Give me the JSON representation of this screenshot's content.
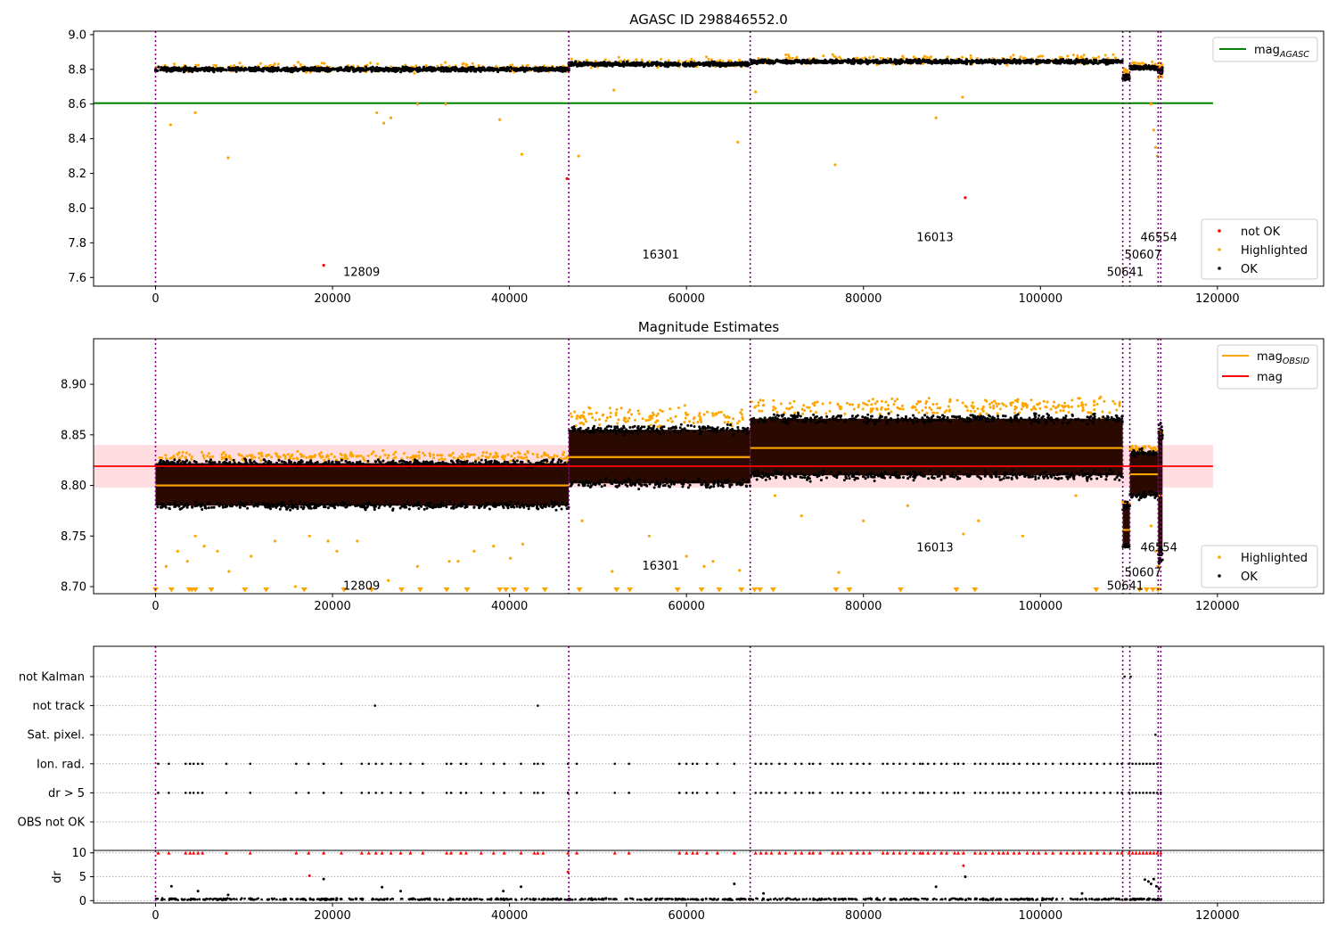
{
  "colors": {
    "ok": "#000000",
    "highlighted": "#ffa500",
    "not_ok": "#ff0000",
    "mag_agasc_line": "#008000",
    "mag_line": "#ff0000",
    "mag_band": "#ffdde1",
    "mag_obsid_line": "#ffa500",
    "obsid_divider": "#800080",
    "dark_band": "#2a0a00"
  },
  "chart_data": [
    {
      "id": "top",
      "type": "scatter",
      "title": "AGASC ID 298846552.0",
      "xlim": [
        -7000,
        132000
      ],
      "ylim": [
        7.55,
        9.02
      ],
      "xticks": [
        0,
        20000,
        40000,
        60000,
        80000,
        100000,
        120000
      ],
      "xtick_labels": [
        "0",
        "20000",
        "40000",
        "60000",
        "80000",
        "100000",
        "120000"
      ],
      "yticks": [
        7.6,
        7.8,
        8.0,
        8.2,
        8.4,
        8.6,
        8.8,
        9.0
      ],
      "ytick_labels": [
        "7.6",
        "7.8",
        "8.0",
        "8.2",
        "8.4",
        "8.6",
        "8.8",
        "9.0"
      ],
      "mag_agasc": 8.605,
      "mag_agasc_xrange": [
        -7000,
        119500
      ],
      "ok_segments": [
        {
          "x": [
            0,
            46700
          ],
          "y": 8.8,
          "spread": 0.03
        },
        {
          "x": [
            46700,
            67200
          ],
          "y": 8.83,
          "spread": 0.03
        },
        {
          "x": [
            67200,
            109300
          ],
          "y": 8.845,
          "spread": 0.03
        },
        {
          "x": [
            109300,
            110100
          ],
          "y": 8.755,
          "spread": 0.04
        },
        {
          "x": [
            110100,
            113300
          ],
          "y": 8.81,
          "spread": 0.03
        },
        {
          "x": [
            113300,
            113800
          ],
          "y": 8.79,
          "spread": 0.05
        }
      ],
      "highlighted_points": [
        [
          1700,
          8.48
        ],
        [
          4500,
          8.55
        ],
        [
          8200,
          8.29
        ],
        [
          25000,
          8.55
        ],
        [
          25800,
          8.49
        ],
        [
          26600,
          8.52
        ],
        [
          29600,
          8.6
        ],
        [
          32800,
          8.6
        ],
        [
          38900,
          8.51
        ],
        [
          41400,
          8.31
        ],
        [
          47800,
          8.3
        ],
        [
          51800,
          8.68
        ],
        [
          65800,
          8.38
        ],
        [
          67800,
          8.67
        ],
        [
          76800,
          8.25
        ],
        [
          88200,
          8.52
        ],
        [
          91200,
          8.64
        ],
        [
          112500,
          8.6
        ],
        [
          112800,
          8.45
        ],
        [
          113000,
          8.35
        ],
        [
          113200,
          8.3
        ]
      ],
      "not_ok_points": [
        [
          46500,
          8.17
        ],
        [
          91500,
          8.06
        ],
        [
          19000,
          7.67
        ]
      ],
      "obsid_labels": [
        {
          "text": "12809",
          "x": 21200,
          "y": 7.61
        },
        {
          "text": "16301",
          "x": 55000,
          "y": 7.71
        },
        {
          "text": "16013",
          "x": 86000,
          "y": 7.81
        },
        {
          "text": "50641",
          "x": 107500,
          "y": 7.61
        },
        {
          "text": "50607",
          "x": 109500,
          "y": 7.71
        },
        {
          "text": "46554",
          "x": 111300,
          "y": 7.81
        }
      ],
      "legend_upper": {
        "position": "upper right",
        "entries": [
          {
            "label": "mag",
            "sub": "AGASC",
            "kind": "line",
            "color": "#008000"
          }
        ]
      },
      "legend_lower": {
        "position": "lower right",
        "entries": [
          {
            "label": "not OK",
            "kind": "dot",
            "color": "#ff0000"
          },
          {
            "label": "Highlighted",
            "kind": "dot",
            "color": "#ffa500"
          },
          {
            "label": "OK",
            "kind": "dot",
            "color": "#000000"
          }
        ]
      }
    },
    {
      "id": "mid",
      "type": "scatter",
      "title": "Magnitude Estimates",
      "xlim": [
        -7000,
        132000
      ],
      "ylim": [
        8.693,
        8.945
      ],
      "xticks": [
        0,
        20000,
        40000,
        60000,
        80000,
        100000,
        120000
      ],
      "xtick_labels": [
        "0",
        "20000",
        "40000",
        "60000",
        "80000",
        "100000",
        "120000"
      ],
      "yticks": [
        8.7,
        8.75,
        8.8,
        8.85,
        8.9
      ],
      "ytick_labels": [
        "8.70",
        "8.75",
        "8.80",
        "8.85",
        "8.90"
      ],
      "mag": 8.819,
      "mag_band": [
        8.798,
        8.84
      ],
      "mag_xrange": [
        -7000,
        119500
      ],
      "segments": [
        {
          "x": [
            0,
            46700
          ],
          "mag_obsid": 8.8,
          "ok_range": [
            8.78,
            8.822
          ],
          "hi_range": [
            8.822,
            8.835
          ]
        },
        {
          "x": [
            46700,
            67200
          ],
          "mag_obsid": 8.828,
          "ok_range": [
            8.802,
            8.855
          ],
          "hi_range": [
            8.855,
            8.882
          ]
        },
        {
          "x": [
            67200,
            109300
          ],
          "mag_obsid": 8.837,
          "ok_range": [
            8.81,
            8.866
          ],
          "hi_range": [
            8.866,
            8.89
          ]
        },
        {
          "x": [
            109300,
            110100
          ],
          "mag_obsid": 8.756,
          "ok_range": [
            8.74,
            8.78
          ],
          "hi_range": [
            8.78,
            8.785
          ]
        },
        {
          "x": [
            110100,
            113300
          ],
          "mag_obsid": 8.811,
          "ok_range": [
            8.79,
            8.832
          ],
          "hi_range": [
            8.832,
            8.84
          ]
        },
        {
          "x": [
            113300,
            113800
          ],
          "mag_obsid": 8.79,
          "ok_range": [
            8.73,
            8.85
          ],
          "hi_range": [
            8.85,
            8.855
          ]
        }
      ],
      "highlighted_points": [
        [
          1200,
          8.72
        ],
        [
          2500,
          8.735
        ],
        [
          3600,
          8.725
        ],
        [
          4500,
          8.75
        ],
        [
          5500,
          8.74
        ],
        [
          7000,
          8.735
        ],
        [
          8300,
          8.715
        ],
        [
          10800,
          8.73
        ],
        [
          13500,
          8.745
        ],
        [
          15800,
          8.7
        ],
        [
          17400,
          8.75
        ],
        [
          19500,
          8.745
        ],
        [
          20500,
          8.735
        ],
        [
          22800,
          8.745
        ],
        [
          26300,
          8.706
        ],
        [
          29600,
          8.72
        ],
        [
          33200,
          8.725
        ],
        [
          34200,
          8.725
        ],
        [
          36000,
          8.735
        ],
        [
          38200,
          8.74
        ],
        [
          40100,
          8.728
        ],
        [
          41500,
          8.742
        ],
        [
          48200,
          8.765
        ],
        [
          51600,
          8.715
        ],
        [
          55800,
          8.75
        ],
        [
          60000,
          8.73
        ],
        [
          62000,
          8.72
        ],
        [
          63000,
          8.725
        ],
        [
          66000,
          8.716
        ],
        [
          70000,
          8.79
        ],
        [
          73000,
          8.77
        ],
        [
          77200,
          8.714
        ],
        [
          80000,
          8.765
        ],
        [
          85000,
          8.78
        ],
        [
          91300,
          8.752
        ],
        [
          93000,
          8.765
        ],
        [
          98000,
          8.75
        ],
        [
          104000,
          8.79
        ],
        [
          112500,
          8.76
        ],
        [
          113000,
          8.735
        ],
        [
          113300,
          8.72
        ]
      ],
      "lower_limit_markers": [
        0,
        1800,
        3800,
        4100,
        4500,
        6300,
        10100,
        12500,
        16800,
        21300,
        24400,
        27800,
        29900,
        32900,
        35200,
        38900,
        39600,
        40500,
        41900,
        44000,
        47900,
        52100,
        53600,
        59000,
        61700,
        63700,
        66200,
        67700,
        68300,
        69800,
        76900,
        78400,
        84200,
        90500,
        92600,
        106300,
        111200,
        112000,
        112700,
        113300
      ],
      "obsid_labels": [
        {
          "text": "12809",
          "x": 21200,
          "y": 8.697
        },
        {
          "text": "16301",
          "x": 55000,
          "y": 8.717
        },
        {
          "text": "16013",
          "x": 86000,
          "y": 8.735
        },
        {
          "text": "50641",
          "x": 107500,
          "y": 8.697
        },
        {
          "text": "50607",
          "x": 109500,
          "y": 8.71
        },
        {
          "text": "46554",
          "x": 111300,
          "y": 8.735
        }
      ],
      "legend_upper": {
        "position": "upper right",
        "entries": [
          {
            "label": "mag",
            "sub": "OBSID",
            "kind": "line",
            "color": "#ffa500"
          },
          {
            "label": "mag",
            "kind": "line",
            "color": "#ff0000"
          }
        ]
      },
      "legend_lower": {
        "position": "lower right",
        "entries": [
          {
            "label": "Highlighted",
            "kind": "dot",
            "color": "#ffa500"
          },
          {
            "label": "OK",
            "kind": "dot",
            "color": "#000000"
          }
        ]
      }
    },
    {
      "id": "flags",
      "type": "scatter",
      "xlim": [
        -7000,
        132000
      ],
      "categories": [
        "not Kalman",
        "not track",
        "Sat. pixel.",
        "Ion. rad.",
        "dr > 5",
        "OBS not OK"
      ],
      "flag_points": {
        "not Kalman": [
          109500,
          110200
        ],
        "not track": [
          24800,
          43200
        ],
        "Sat. pixel.": [
          113000
        ],
        "Ion. rad.": [
          300,
          1500,
          3400,
          3900,
          4300,
          4800,
          5300,
          8000,
          10700,
          15900,
          17300,
          19000,
          21000,
          23300,
          24100,
          24900,
          25600,
          26600,
          27700,
          28800,
          30200,
          32900,
          33400,
          34500,
          35100,
          36800,
          38200,
          39400,
          41300,
          42800,
          43200,
          43800,
          46600,
          47600,
          51900,
          53500,
          59200,
          60000,
          60700,
          61200,
          62300,
          63500,
          65400,
          67800,
          68400,
          69000,
          69600,
          70500,
          71200,
          72300,
          73000,
          73900,
          74300,
          75100,
          76500,
          77100,
          77600,
          78600,
          79300,
          80000,
          80700,
          82200,
          82700,
          83400,
          84100,
          84800,
          85700,
          86400,
          86700,
          87300,
          88000,
          88800,
          89400,
          90300,
          90700,
          91300,
          92600,
          93200,
          93800,
          94600,
          95300,
          95800,
          96300,
          97000,
          97600,
          98500,
          99200,
          99800,
          100600,
          101400,
          102300,
          103000,
          103700,
          104400,
          105000,
          105700,
          106400,
          107200,
          107900,
          108700,
          109200,
          110000,
          110400,
          110800,
          111200,
          111600,
          112000,
          112400,
          112800,
          113200,
          113600
        ],
        "dr > 5": [
          300,
          1500,
          3400,
          3900,
          4300,
          4800,
          5300,
          8000,
          10700,
          15900,
          17300,
          19000,
          21000,
          23300,
          24100,
          24900,
          25600,
          26600,
          27700,
          28800,
          30200,
          32900,
          33400,
          34500,
          35100,
          36800,
          38200,
          39400,
          41300,
          42800,
          43200,
          43800,
          46600,
          47600,
          51900,
          53500,
          59200,
          60000,
          60700,
          61200,
          62300,
          63500,
          65400,
          67800,
          68400,
          69000,
          69600,
          70500,
          71200,
          72300,
          73000,
          73900,
          74300,
          75100,
          76500,
          77100,
          77600,
          78600,
          79300,
          80000,
          80700,
          82200,
          82700,
          83400,
          84100,
          84800,
          85700,
          86400,
          86700,
          87300,
          88000,
          88800,
          89400,
          90300,
          90700,
          91300,
          92600,
          93200,
          93800,
          94600,
          95300,
          95800,
          96300,
          97000,
          97600,
          98500,
          99200,
          99800,
          100600,
          101400,
          102300,
          103000,
          103700,
          104400,
          105000,
          105700,
          106400,
          107200,
          107900,
          108700,
          109200,
          110000,
          110400,
          110800,
          111200,
          111600,
          112000,
          112400,
          112800,
          113200,
          113600
        ],
        "OBS not OK": []
      }
    },
    {
      "id": "dr",
      "type": "scatter",
      "ylabel": "dr",
      "xlim": [
        -7000,
        132000
      ],
      "ylim": [
        -0.5,
        10.5
      ],
      "xticks": [
        0,
        20000,
        40000,
        60000,
        80000,
        100000,
        120000
      ],
      "xtick_labels": [
        "0",
        "20000",
        "40000",
        "60000",
        "80000",
        "100000",
        "120000"
      ],
      "yticks": [
        0,
        5,
        10
      ],
      "ytick_labels": [
        "0",
        "5",
        "10"
      ],
      "baseline_range": [
        0,
        0.6
      ],
      "clipped_value": 10,
      "outliers": [
        [
          1800,
          3.0
        ],
        [
          4800,
          2.0
        ],
        [
          8200,
          1.2
        ],
        [
          17400,
          5.2
        ],
        [
          19000,
          4.5
        ],
        [
          25600,
          2.8
        ],
        [
          27700,
          2.0
        ],
        [
          39300,
          2.0
        ],
        [
          41300,
          2.9
        ],
        [
          46600,
          6.0
        ],
        [
          65400,
          3.5
        ],
        [
          68700,
          1.5
        ],
        [
          88200,
          2.9
        ],
        [
          91300,
          7.3
        ],
        [
          91500,
          5.0
        ],
        [
          104700,
          1.5
        ],
        [
          111800,
          4.4
        ],
        [
          112200,
          4.0
        ],
        [
          112500,
          3.5
        ],
        [
          112800,
          4.5
        ],
        [
          113100,
          3.0
        ],
        [
          113400,
          2.5
        ]
      ]
    }
  ],
  "obsid_boundaries": [
    0,
    46700,
    67200,
    109300,
    110100,
    113300,
    113600
  ]
}
